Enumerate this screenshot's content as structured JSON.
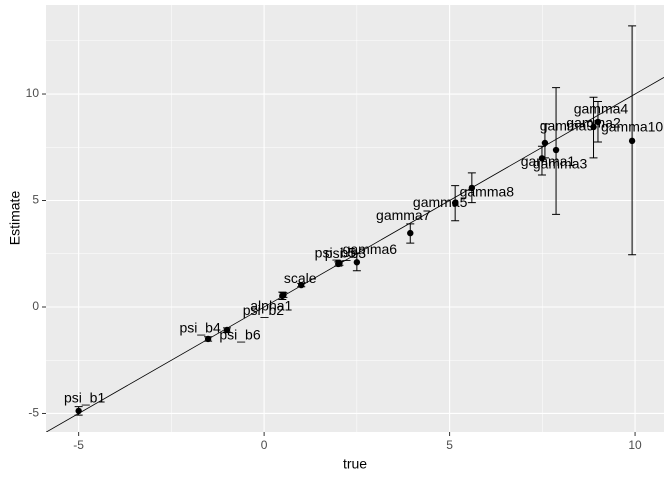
{
  "chart_data": {
    "type": "scatter",
    "xlabel": "true",
    "ylabel": "Estimate",
    "labels": [
      "psi_b1",
      "psi_b4",
      "psi_b6",
      "alpha1",
      "psi_b2",
      "scale",
      "psi_b5",
      "psi_b3",
      "gamma6",
      "gamma7",
      "gamma5",
      "gamma8",
      "gamma1",
      "gamma3",
      "gamma9",
      "gamma2",
      "gamma4",
      "gamma10"
    ],
    "x": [
      -5,
      -1.51,
      -1.0,
      0.49,
      0.52,
      1.0,
      2.0,
      2.03,
      2.5,
      3.94,
      5.15,
      5.6,
      7.49,
      7.87,
      7.57,
      8.88,
      9.0,
      9.92
    ],
    "values": [
      -4.88,
      -1.5,
      -1.08,
      0.52,
      0.56,
      1.03,
      2.02,
      2.06,
      2.1,
      3.47,
      4.88,
      5.59,
      6.98,
      7.37,
      7.7,
      8.45,
      8.69,
      7.8
    ],
    "lower": [
      -5.08,
      -1.6,
      -1.18,
      0.35,
      0.45,
      0.95,
      1.92,
      1.96,
      1.7,
      3.0,
      4.05,
      4.9,
      6.2,
      4.35,
      7.0,
      7.0,
      7.75,
      2.45
    ],
    "upper": [
      -4.68,
      -1.4,
      -0.98,
      0.7,
      0.67,
      1.11,
      2.12,
      2.16,
      2.5,
      3.9,
      5.7,
      6.3,
      7.55,
      10.3,
      8.6,
      9.85,
      9.65,
      13.2
    ],
    "reference_line": {
      "intercept": 0,
      "slope": 1
    },
    "xlim": [
      -5.88,
      10.78
    ],
    "ylim": [
      -5.87,
      14.18
    ],
    "xticks": [
      -5,
      0,
      5,
      10
    ],
    "yticks": [
      -5,
      0,
      5,
      10
    ],
    "grid": true,
    "color": "#000000"
  }
}
